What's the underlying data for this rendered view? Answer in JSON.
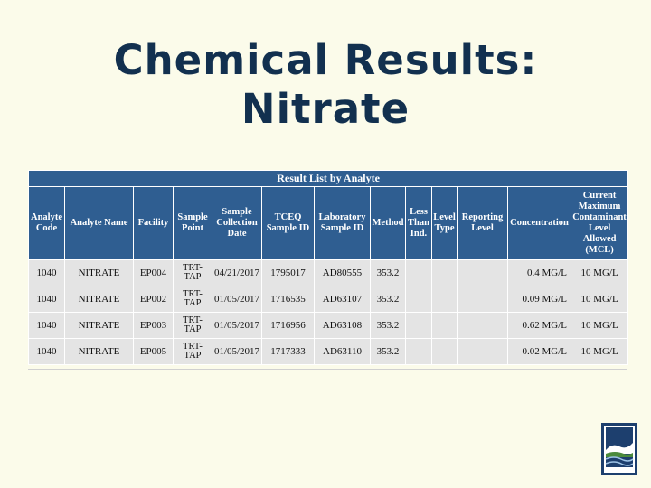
{
  "slide": {
    "title_line1": "Chemical Results:",
    "title_line2": "Nitrate"
  },
  "table": {
    "caption": "Result List by Analyte",
    "headers": [
      "Analyte\nCode",
      "Analyte Name",
      "Facility",
      "Sample\nPoint",
      "Sample\nCollection\nDate",
      "TCEQ\nSample ID",
      "Laboratory\nSample ID",
      "Method",
      "Less\nThan\nInd.",
      "Level\nType",
      "Reporting\nLevel",
      "Concentration",
      "Current\nMaximum\nContaminant\nLevel\nAllowed\n(MCL)"
    ],
    "rows": [
      [
        "1040",
        "NITRATE",
        "EP004",
        "TRT-\nTAP",
        "04/21/2017",
        "1795017",
        "AD80555",
        "353.2",
        "",
        "",
        "",
        "0.4 MG/L",
        "10 MG/L"
      ],
      [
        "1040",
        "NITRATE",
        "EP002",
        "TRT-\nTAP",
        "01/05/2017",
        "1716535",
        "AD63107",
        "353.2",
        "",
        "",
        "",
        "0.09 MG/L",
        "10 MG/L"
      ],
      [
        "1040",
        "NITRATE",
        "EP003",
        "TRT-\nTAP",
        "01/05/2017",
        "1716956",
        "AD63108",
        "353.2",
        "",
        "",
        "",
        "0.62 MG/L",
        "10 MG/L"
      ],
      [
        "1040",
        "NITRATE",
        "EP005",
        "TRT-\nTAP",
        "01/05/2017",
        "1717333",
        "AD63110",
        "353.2",
        "",
        "",
        "",
        "0.02 MG/L",
        "10 MG/L"
      ]
    ]
  },
  "logo": {
    "icon": "agency-logo-icon"
  },
  "colors": {
    "background": "#fbfbea",
    "title": "#12304f",
    "header_bg": "#2f5e91",
    "row_bg": "#e4e4e4"
  }
}
